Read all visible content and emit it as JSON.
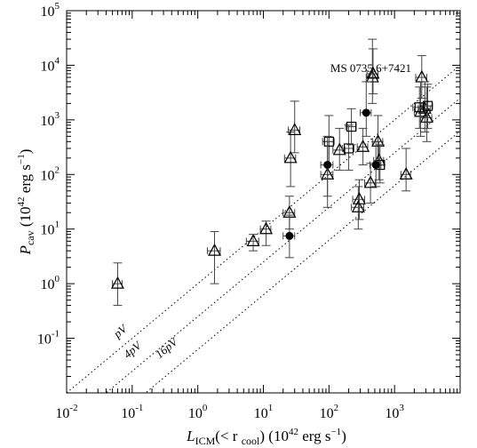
{
  "chart_data": {
    "type": "scatter",
    "title": "",
    "xlabel": {
      "symbol": "L",
      "sub": "ICM",
      "mid": "(< r",
      "sub2": "cool",
      "units": ") (10",
      "exp": "42",
      "tail": " erg s",
      "tail_exp": "−1",
      "close": ")"
    },
    "ylabel": {
      "symbol": "P",
      "sub": "cav",
      "units": " (10",
      "exp": "42",
      "tail": " erg s",
      "tail_exp": "−1",
      "close": ")"
    },
    "xscale": "log",
    "yscale": "log",
    "xlim": [
      0.01,
      10000
    ],
    "ylim": [
      0.01,
      100000
    ],
    "x_ticks": [
      {
        "value": 0.01,
        "base": "10",
        "exp": "-2"
      },
      {
        "value": 0.1,
        "base": "10",
        "exp": "-1"
      },
      {
        "value": 1,
        "base": "10",
        "exp": "0"
      },
      {
        "value": 10,
        "base": "10",
        "exp": "1"
      },
      {
        "value": 100,
        "base": "10",
        "exp": "2"
      },
      {
        "value": 1000,
        "base": "10",
        "exp": "3"
      }
    ],
    "y_ticks": [
      {
        "value": 0.1,
        "base": "10",
        "exp": "-1"
      },
      {
        "value": 1,
        "base": "10",
        "exp": "0"
      },
      {
        "value": 10,
        "base": "10",
        "exp": "1"
      },
      {
        "value": 100,
        "base": "10",
        "exp": "2"
      },
      {
        "value": 1000,
        "base": "10",
        "exp": "3"
      },
      {
        "value": 10000,
        "base": "10",
        "exp": "4"
      },
      {
        "value": 100000,
        "base": "10",
        "exp": "5"
      }
    ],
    "reference_lines": [
      {
        "label": "pV",
        "factor": 1,
        "label_x": 0.06,
        "label_y": 0.1
      },
      {
        "label": "4pV",
        "factor": 4,
        "label_x": 0.085,
        "label_y": 0.042
      },
      {
        "label": "16pV",
        "factor": 16,
        "label_x": 0.26,
        "label_y": 0.042
      }
    ],
    "annotations": [
      {
        "text": "MS 0735.6+7421",
        "x": 105,
        "y": 7500
      }
    ],
    "series": [
      {
        "marker": "triangle",
        "points": [
          {
            "x": 0.06,
            "y": 1.0,
            "xerr": [
              0.05,
              0.07
            ],
            "yerr": [
              0.4,
              2.4
            ]
          },
          {
            "x": 1.8,
            "y": 4.0,
            "xerr": [
              1.4,
              2.2
            ],
            "yerr": [
              1.0,
              9.0
            ]
          },
          {
            "x": 7,
            "y": 6.0,
            "xerr": [
              5.5,
              8.5
            ],
            "yerr": [
              4.0,
              8.0
            ]
          },
          {
            "x": 11,
            "y": 10,
            "xerr": [
              9,
              13
            ],
            "yerr": [
              5,
              14
            ]
          },
          {
            "x": 25,
            "y": 20,
            "xerr": [
              20,
              30
            ],
            "yerr": [
              10,
              40
            ]
          },
          {
            "x": 26,
            "y": 200,
            "xerr": [
              21,
              31
            ],
            "yerr": [
              60,
              600
            ]
          },
          {
            "x": 30,
            "y": 650,
            "xerr": [
              24,
              36
            ],
            "yerr": [
              250,
              2200
            ]
          },
          {
            "x": 95,
            "y": 100,
            "xerr": [
              75,
              115
            ],
            "yerr": [
              25,
              400
            ]
          },
          {
            "x": 145,
            "y": 280,
            "xerr": [
              115,
              175
            ],
            "yerr": [
              120,
              700
            ]
          },
          {
            "x": 280,
            "y": 25,
            "xerr": [
              220,
              340
            ],
            "yerr": [
              10,
              60
            ]
          },
          {
            "x": 290,
            "y": 35,
            "xerr": [
              230,
              350
            ],
            "yerr": [
              15,
              80
            ]
          },
          {
            "x": 330,
            "y": 320,
            "xerr": [
              270,
              390
            ],
            "yerr": [
              150,
              700
            ]
          },
          {
            "x": 430,
            "y": 70,
            "xerr": [
              350,
              510
            ],
            "yerr": [
              30,
              160
            ]
          },
          {
            "x": 460,
            "y": 6000,
            "xerr": [
              370,
              550
            ],
            "yerr": [
              2000,
              30000
            ]
          },
          {
            "x": 470,
            "y": 7000,
            "xerr": [
              380,
              560
            ],
            "yerr": [
              3000,
              20000
            ]
          },
          {
            "x": 560,
            "y": 400,
            "xerr": [
              460,
              660
            ],
            "yerr": [
              150,
              1200
            ]
          },
          {
            "x": 580,
            "y": 180,
            "xerr": [
              480,
              680
            ],
            "yerr": [
              80,
              400
            ]
          },
          {
            "x": 1500,
            "y": 100,
            "xerr": [
              1250,
              1750
            ],
            "yerr": [
              50,
              300
            ]
          },
          {
            "x": 2500,
            "y": 1400,
            "xerr": [
              2000,
              3000
            ],
            "yerr": [
              500,
              5000
            ]
          },
          {
            "x": 2600,
            "y": 6000,
            "xerr": [
              2100,
              3100
            ],
            "yerr": [
              2500,
              15000
            ]
          },
          {
            "x": 2900,
            "y": 1600,
            "xerr": [
              2300,
              3500
            ],
            "yerr": [
              600,
              5000
            ]
          },
          {
            "x": 3100,
            "y": 1100,
            "xerr": [
              2500,
              3700
            ],
            "yerr": [
              400,
              4000
            ]
          }
        ]
      },
      {
        "marker": "square",
        "points": [
          {
            "x": 100,
            "y": 400,
            "xerr": [
              80,
              120
            ],
            "yerr": [
              150,
              1200
            ]
          },
          {
            "x": 200,
            "y": 300,
            "xerr": [
              160,
              240
            ],
            "yerr": [
              120,
              800
            ]
          },
          {
            "x": 220,
            "y": 750,
            "xerr": [
              180,
              260
            ],
            "yerr": [
              350,
              1600
            ]
          },
          {
            "x": 600,
            "y": 150,
            "xerr": [
              500,
              700
            ],
            "yerr": [
              70,
              350
            ]
          },
          {
            "x": 2400,
            "y": 1700,
            "xerr": [
              1900,
              2900
            ],
            "yerr": [
              700,
              4000
            ]
          },
          {
            "x": 3200,
            "y": 1800,
            "xerr": [
              2600,
              3800
            ],
            "yerr": [
              700,
              4500
            ]
          }
        ]
      },
      {
        "marker": "circle",
        "points": [
          {
            "x": 25,
            "y": 7.5,
            "xerr": [
              20,
              30
            ],
            "yerr": [
              3,
              18
            ]
          },
          {
            "x": 95,
            "y": 150,
            "xerr": [
              75,
              115
            ],
            "yerr": [
              40,
              500
            ]
          },
          {
            "x": 370,
            "y": 1350,
            "xerr": [
              300,
              440
            ],
            "yerr": [
              500,
              5000
            ]
          },
          {
            "x": 520,
            "y": 150,
            "xerr": [
              420,
              620
            ],
            "yerr": [
              60,
              400
            ]
          }
        ]
      }
    ]
  }
}
